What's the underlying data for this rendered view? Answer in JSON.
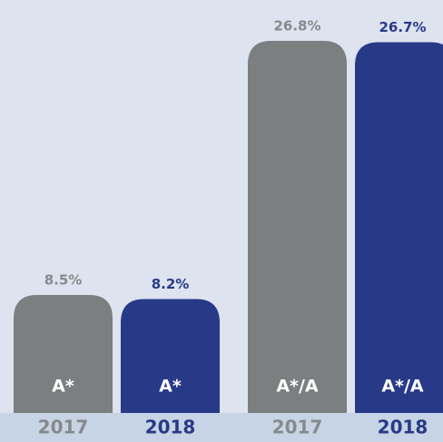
{
  "chart_data": {
    "type": "bar",
    "categories": [
      "2017",
      "2018",
      "2017",
      "2018"
    ],
    "bar_labels": [
      "A*",
      "A*",
      "A*/A",
      "A*/A"
    ],
    "values": [
      8.5,
      8.2,
      26.8,
      26.7
    ],
    "value_labels": [
      "8.5%",
      "8.2%",
      "26.8%",
      "26.7%"
    ],
    "colors": [
      "#7b7f80",
      "#283a87",
      "#7b7f80",
      "#283a87"
    ],
    "label_colors": [
      "#858a8c",
      "#283a87",
      "#858a8c",
      "#283a87"
    ]
  }
}
